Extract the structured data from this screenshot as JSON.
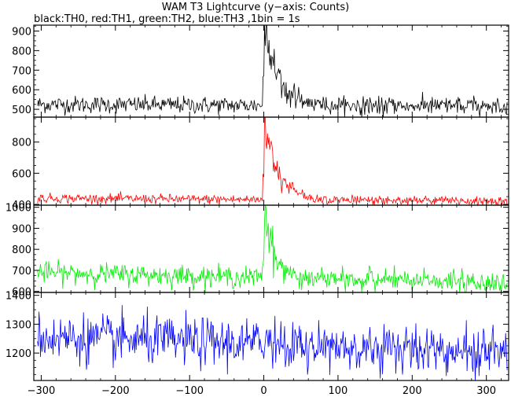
{
  "title": "WAM T3 Lightcurve (y−axis: Counts)",
  "subtitle": "black:TH0, red:TH1, green:TH2, blue:TH3 ,1bin = 1s",
  "chart_data": {
    "type": "line",
    "x": {
      "min": -310,
      "max": 330,
      "ticks": [
        -300,
        -200,
        -100,
        0,
        100,
        200,
        300
      ]
    },
    "grid": false,
    "bin_seconds": 1,
    "panels": [
      {
        "name": "TH0",
        "color": "#000000",
        "ylim": [
          460,
          930
        ],
        "yticks": [
          500,
          600,
          700,
          800,
          900
        ],
        "baseline_start": 525,
        "baseline_end": 515,
        "noise": 22,
        "peak": 950,
        "decay_tau": 18
      },
      {
        "name": "TH1",
        "color": "#ff0000",
        "ylim": [
          395,
          960
        ],
        "yticks": [
          400,
          600,
          800
        ],
        "baseline_start": 440,
        "baseline_end": 420,
        "noise": 15,
        "peak": 960,
        "decay_tau": 18
      },
      {
        "name": "TH2",
        "color": "#00ee00",
        "ylim": [
          595,
          1010
        ],
        "yticks": [
          600,
          700,
          800,
          900,
          1000
        ],
        "baseline_start": 690,
        "baseline_end": 640,
        "noise": 25,
        "peak": 1010,
        "decay_tau": 12
      },
      {
        "name": "TH3",
        "color": "#0000ff",
        "ylim": [
          1105,
          1410
        ],
        "yticks": [
          1200,
          1300,
          1400
        ],
        "baseline_start": 1255,
        "baseline_end": 1205,
        "noise": 42,
        "peak": 1260,
        "decay_tau": 10
      }
    ]
  }
}
